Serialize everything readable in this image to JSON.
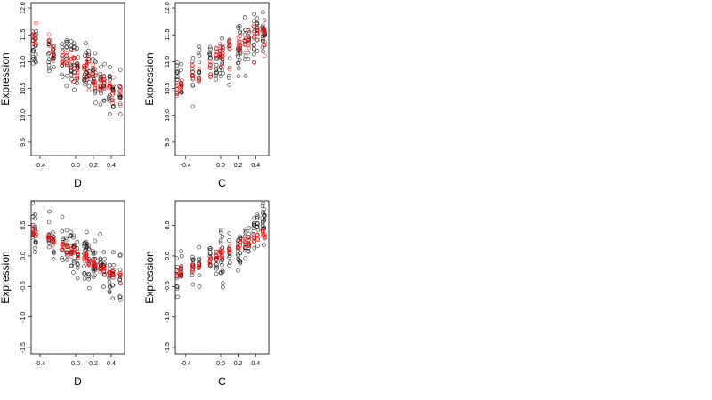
{
  "chart_data": [
    {
      "type": "scatter",
      "xlabel": "D",
      "ylabel": "Expression",
      "xlim": [
        -0.5,
        0.55
      ],
      "ylim": [
        9.25,
        12.1
      ],
      "xticks": [
        -0.4,
        0.0,
        0.2,
        0.4
      ],
      "xtick_labels": [
        "-0.4",
        "0.0",
        "0.2",
        "0.4"
      ],
      "yticks": [
        9.5,
        10.0,
        10.5,
        11.0,
        11.5,
        12.0
      ],
      "ytick_labels": [
        "9.5",
        "10.0",
        "10.5",
        "11.0",
        "11.5",
        "12.0"
      ],
      "grid": false,
      "marker": "open-circle",
      "x_levels": [
        -0.48,
        -0.45,
        -0.3,
        -0.25,
        -0.15,
        -0.1,
        -0.05,
        -0.02,
        0.02,
        0.1,
        0.12,
        0.15,
        0.2,
        0.22,
        0.28,
        0.32,
        0.38,
        0.42,
        0.5
      ],
      "series": [
        {
          "color": "#000000",
          "trend": [
            11.3,
            11.3,
            11.2,
            11.15,
            11.1,
            11.05,
            11.0,
            10.95,
            10.9,
            10.85,
            10.9,
            10.8,
            10.75,
            10.7,
            10.6,
            10.6,
            10.5,
            10.4,
            10.4
          ],
          "spread": 0.38,
          "per_level": 10
        },
        {
          "color": "#ff0000",
          "trend": [
            11.5,
            11.4,
            11.3,
            11.2,
            11.1,
            11.0,
            10.95,
            11.0,
            10.85,
            10.8,
            10.9,
            10.75,
            10.7,
            10.65,
            10.55,
            10.6,
            10.45,
            10.4,
            10.45
          ],
          "spread": 0.2,
          "per_level": 6
        }
      ]
    },
    {
      "type": "scatter",
      "xlabel": "C",
      "ylabel": "Expression",
      "xlim": [
        -0.52,
        0.55
      ],
      "ylim": [
        9.25,
        12.1
      ],
      "xticks": [
        -0.4,
        0.0,
        0.2,
        0.4
      ],
      "xtick_labels": [
        "-0.4",
        "0.0",
        "0.2",
        "0.4"
      ],
      "yticks": [
        9.5,
        10.0,
        10.5,
        11.0,
        11.5,
        12.0
      ],
      "ytick_labels": [
        "9.5",
        "10.0",
        "10.5",
        "11.0",
        "11.5",
        "12.0"
      ],
      "grid": false,
      "marker": "open-circle",
      "x_levels": [
        -0.5,
        -0.45,
        -0.32,
        -0.25,
        -0.12,
        -0.05,
        0.0,
        0.02,
        0.1,
        0.2,
        0.22,
        0.28,
        0.32,
        0.38,
        0.42,
        0.48,
        0.5
      ],
      "series": [
        {
          "color": "#000000",
          "trend": [
            10.6,
            10.7,
            10.8,
            10.9,
            10.95,
            10.9,
            11.0,
            10.95,
            11.1,
            11.2,
            11.15,
            11.3,
            11.35,
            11.4,
            11.6,
            11.5,
            11.5
          ],
          "spread": 0.4,
          "per_level": 10
        },
        {
          "color": "#ff0000",
          "trend": [
            10.5,
            10.6,
            10.8,
            10.7,
            10.9,
            11.0,
            11.2,
            11.1,
            11.2,
            11.3,
            11.3,
            11.35,
            11.4,
            11.3,
            11.5,
            11.6,
            11.4
          ],
          "spread": 0.22,
          "per_level": 6
        }
      ]
    },
    {
      "type": "scatter",
      "xlabel": "D",
      "ylabel": "Expression",
      "xlim": [
        -0.5,
        0.55
      ],
      "ylim": [
        -1.6,
        0.9
      ],
      "xticks": [
        -0.4,
        0.0,
        0.2,
        0.4
      ],
      "xtick_labels": [
        "-0.4",
        "0.0",
        "0.2",
        "0.4"
      ],
      "yticks": [
        -1.5,
        -1.0,
        -0.5,
        0.0,
        0.5
      ],
      "ytick_labels": [
        "-1.5",
        "-1.0",
        "-0.5",
        "0.0",
        "0.5"
      ],
      "grid": false,
      "marker": "open-circle",
      "x_levels": [
        -0.48,
        -0.45,
        -0.3,
        -0.25,
        -0.15,
        -0.1,
        -0.05,
        -0.02,
        0.02,
        0.1,
        0.12,
        0.15,
        0.2,
        0.22,
        0.28,
        0.32,
        0.38,
        0.42,
        0.5
      ],
      "series": [
        {
          "color": "#000000",
          "trend": [
            0.45,
            0.4,
            0.3,
            0.25,
            0.2,
            0.15,
            0.1,
            0.05,
            0.0,
            -0.05,
            0.1,
            -0.1,
            -0.1,
            -0.15,
            -0.2,
            -0.2,
            -0.3,
            -0.35,
            -0.35
          ],
          "spread": 0.32,
          "per_level": 10
        },
        {
          "color": "#ff0000",
          "trend": [
            0.38,
            0.35,
            0.28,
            0.22,
            0.15,
            0.12,
            0.08,
            0.05,
            0.02,
            -0.05,
            0.0,
            -0.1,
            -0.12,
            -0.15,
            -0.2,
            -0.22,
            -0.28,
            -0.3,
            -0.32
          ],
          "spread": 0.08,
          "per_level": 6
        }
      ]
    },
    {
      "type": "scatter",
      "xlabel": "C",
      "ylabel": "Expression",
      "xlim": [
        -0.52,
        0.55
      ],
      "ylim": [
        -1.6,
        0.9
      ],
      "xticks": [
        -0.4,
        0.0,
        0.2,
        0.4
      ],
      "xtick_labels": [
        "-0.4",
        "0.0",
        "0.2",
        "0.4"
      ],
      "yticks": [
        -1.5,
        -1.0,
        -0.5,
        0.0,
        0.5
      ],
      "ytick_labels": [
        "-1.5",
        "-1.0",
        "-0.5",
        "0.0",
        "0.5"
      ],
      "grid": false,
      "marker": "open-circle",
      "x_levels": [
        -0.5,
        -0.45,
        -0.32,
        -0.25,
        -0.12,
        -0.05,
        0.0,
        0.02,
        0.1,
        0.2,
        0.22,
        0.28,
        0.32,
        0.38,
        0.42,
        0.48,
        0.5
      ],
      "series": [
        {
          "color": "#000000",
          "trend": [
            -0.3,
            -0.25,
            -0.15,
            -0.15,
            -0.05,
            0.0,
            0.0,
            -0.05,
            0.05,
            0.1,
            0.1,
            0.2,
            0.25,
            0.3,
            0.4,
            0.55,
            0.5
          ],
          "spread": 0.32,
          "per_level": 10
        },
        {
          "color": "#ff0000",
          "trend": [
            -0.32,
            -0.28,
            -0.2,
            -0.18,
            -0.08,
            0.0,
            0.05,
            0.02,
            0.1,
            0.15,
            0.18,
            0.2,
            0.25,
            0.28,
            0.3,
            0.35,
            0.32
          ],
          "spread": 0.08,
          "per_level": 6
        }
      ]
    }
  ]
}
